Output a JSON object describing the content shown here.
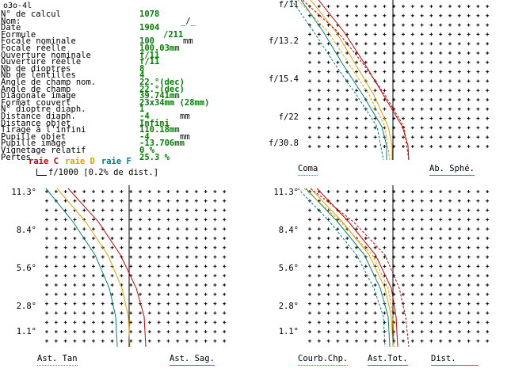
{
  "window": {
    "title": "o3o-4l"
  },
  "params": [
    {
      "label": "N° de calcul",
      "value": "1078",
      "unit": ""
    },
    {
      "label": "Nom:",
      "value": "",
      "unit": "_/_"
    },
    {
      "label": "Date",
      "value": "1904",
      "unit": ""
    },
    {
      "label": "Formule",
      "value": "",
      "unit": "/211"
    },
    {
      "label": "Focale nominale",
      "value": "100",
      "unit": "mm"
    },
    {
      "label": "Focale réelle",
      "value": "100.03mm",
      "unit": ""
    },
    {
      "label": "Ouverture nominale",
      "value": "f/11",
      "unit": ""
    },
    {
      "label": "Ouverture réelle",
      "value": "f/11",
      "unit": ""
    },
    {
      "label": "Nb de dioptres",
      "value": "8",
      "unit": ""
    },
    {
      "label": "Nb de lentilles",
      "value": "4",
      "unit": ""
    },
    {
      "label": "Angle de champ nom.",
      "value": "22.°(dec)",
      "unit": ""
    },
    {
      "label": "Angle de champ",
      "value": "22.°(dec)",
      "unit": ""
    },
    {
      "label": "Diagonale image",
      "value": "39.741mm",
      "unit": ""
    },
    {
      "label": "Format couvert",
      "value": "23x34mm (28mm)",
      "unit": ""
    },
    {
      "label": "N° dioptre diaph.",
      "value": "1",
      "unit": ""
    },
    {
      "label": "Distance diaph.",
      "value": "-4",
      "unit": "mm"
    },
    {
      "label": "Distance objet",
      "value": "Infini",
      "unit": ""
    },
    {
      "label": "Tirage à l'infini",
      "value": "110.18mm",
      "unit": ""
    },
    {
      "label": "Pupille objet",
      "value": "-4",
      "unit": "mm"
    },
    {
      "label": "Pupille image",
      "value": "-13.706mm",
      "unit": ""
    },
    {
      "label": "Vignetage relatif",
      "value": "0 %",
      "unit": ""
    },
    {
      "label": "Pertes",
      "value": "25.3 %",
      "unit": ""
    }
  ],
  "legend": {
    "raie_c": "raie C",
    "raie_d": "raie D",
    "raie_f": "raie F",
    "dist_note": "f/1000 [0.2% de dist.]"
  },
  "colors": {
    "raie_c": "#cc0000",
    "raie_d": "#e0a000",
    "raie_f": "#008080",
    "value_green": "#008000",
    "axis": "#000000"
  },
  "panels": {
    "coma_spherical": {
      "ticks": [
        "f/11",
        "f/13.2",
        "f/15.4",
        "f/22",
        "f/30.8"
      ],
      "label_left": "Coma",
      "label_right": "Ab. Sphé."
    },
    "astigmatism": {
      "ticks": [
        "11.3°",
        "8.4°",
        "5.6°",
        "2.8°",
        "1.1°"
      ],
      "label_left": "Ast. Tan",
      "label_right": "Ast. Sag."
    },
    "field_curvature": {
      "ticks": [
        "11.3°",
        "8.4°",
        "5.6°",
        "2.8°",
        "1.1°"
      ],
      "label_left": "Courb.Chp.",
      "label_mid": "Ast.Tot.",
      "label_right": "Dist."
    }
  }
}
